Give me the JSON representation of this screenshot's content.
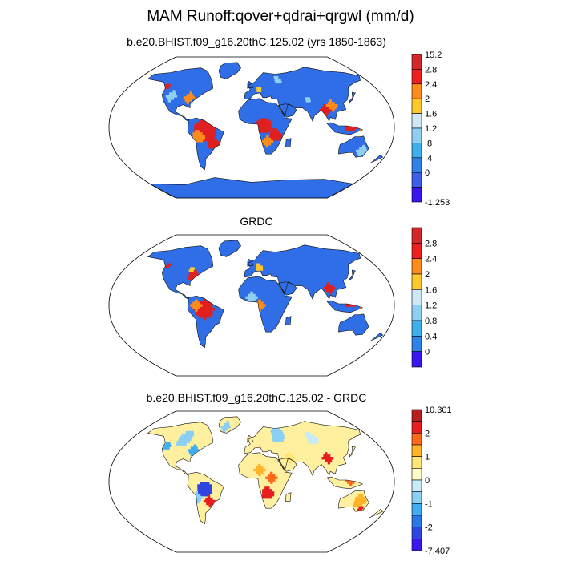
{
  "title": "MAM Runoff:qover+qdrai+qrgwl (mm/d)",
  "panels": [
    {
      "subtitle": "b.e20.BHIST.f09_g16.20thC.125.02 (yrs 1850-1863)",
      "colorbar": {
        "labels": [
          "15.2",
          "2.8",
          "2.4",
          "2",
          "1.6",
          "1.2",
          ".8",
          ".4",
          "0",
          "-1.253"
        ],
        "colors": [
          "#d62728",
          "#ef1f1f",
          "#ff8c1a",
          "#ffc82a",
          "#cfe8f8",
          "#8fd0f2",
          "#3fb0ee",
          "#2f82e8",
          "#3d5ee8",
          "#3a16f0"
        ]
      }
    },
    {
      "subtitle": "GRDC",
      "colorbar": {
        "labels": [
          "2.8",
          "2.4",
          "2",
          "1.6",
          "1.2",
          "0.8",
          "0.4",
          "0"
        ],
        "colors": [
          "#d62728",
          "#ef1f1f",
          "#ff8c1a",
          "#ffc82a",
          "#cfe8f8",
          "#8fd0f2",
          "#3fb0ee",
          "#2f82e8",
          "#3a16f0"
        ]
      }
    },
    {
      "subtitle": "b.e20.BHIST.f09_g16.20thC.125.02 - GRDC",
      "colorbar": {
        "labels": [
          "10.301",
          "2",
          "1",
          "0",
          "-1",
          "-2",
          "-7.407"
        ],
        "colors": [
          "#b71f1f",
          "#e81e1e",
          "#ff6a1a",
          "#ffb42a",
          "#ffe676",
          "#fffdc8",
          "#c9eaf7",
          "#8bd0f4",
          "#3eaef0",
          "#2a78e6",
          "#2f45e0",
          "#3a16f0"
        ]
      }
    }
  ]
}
